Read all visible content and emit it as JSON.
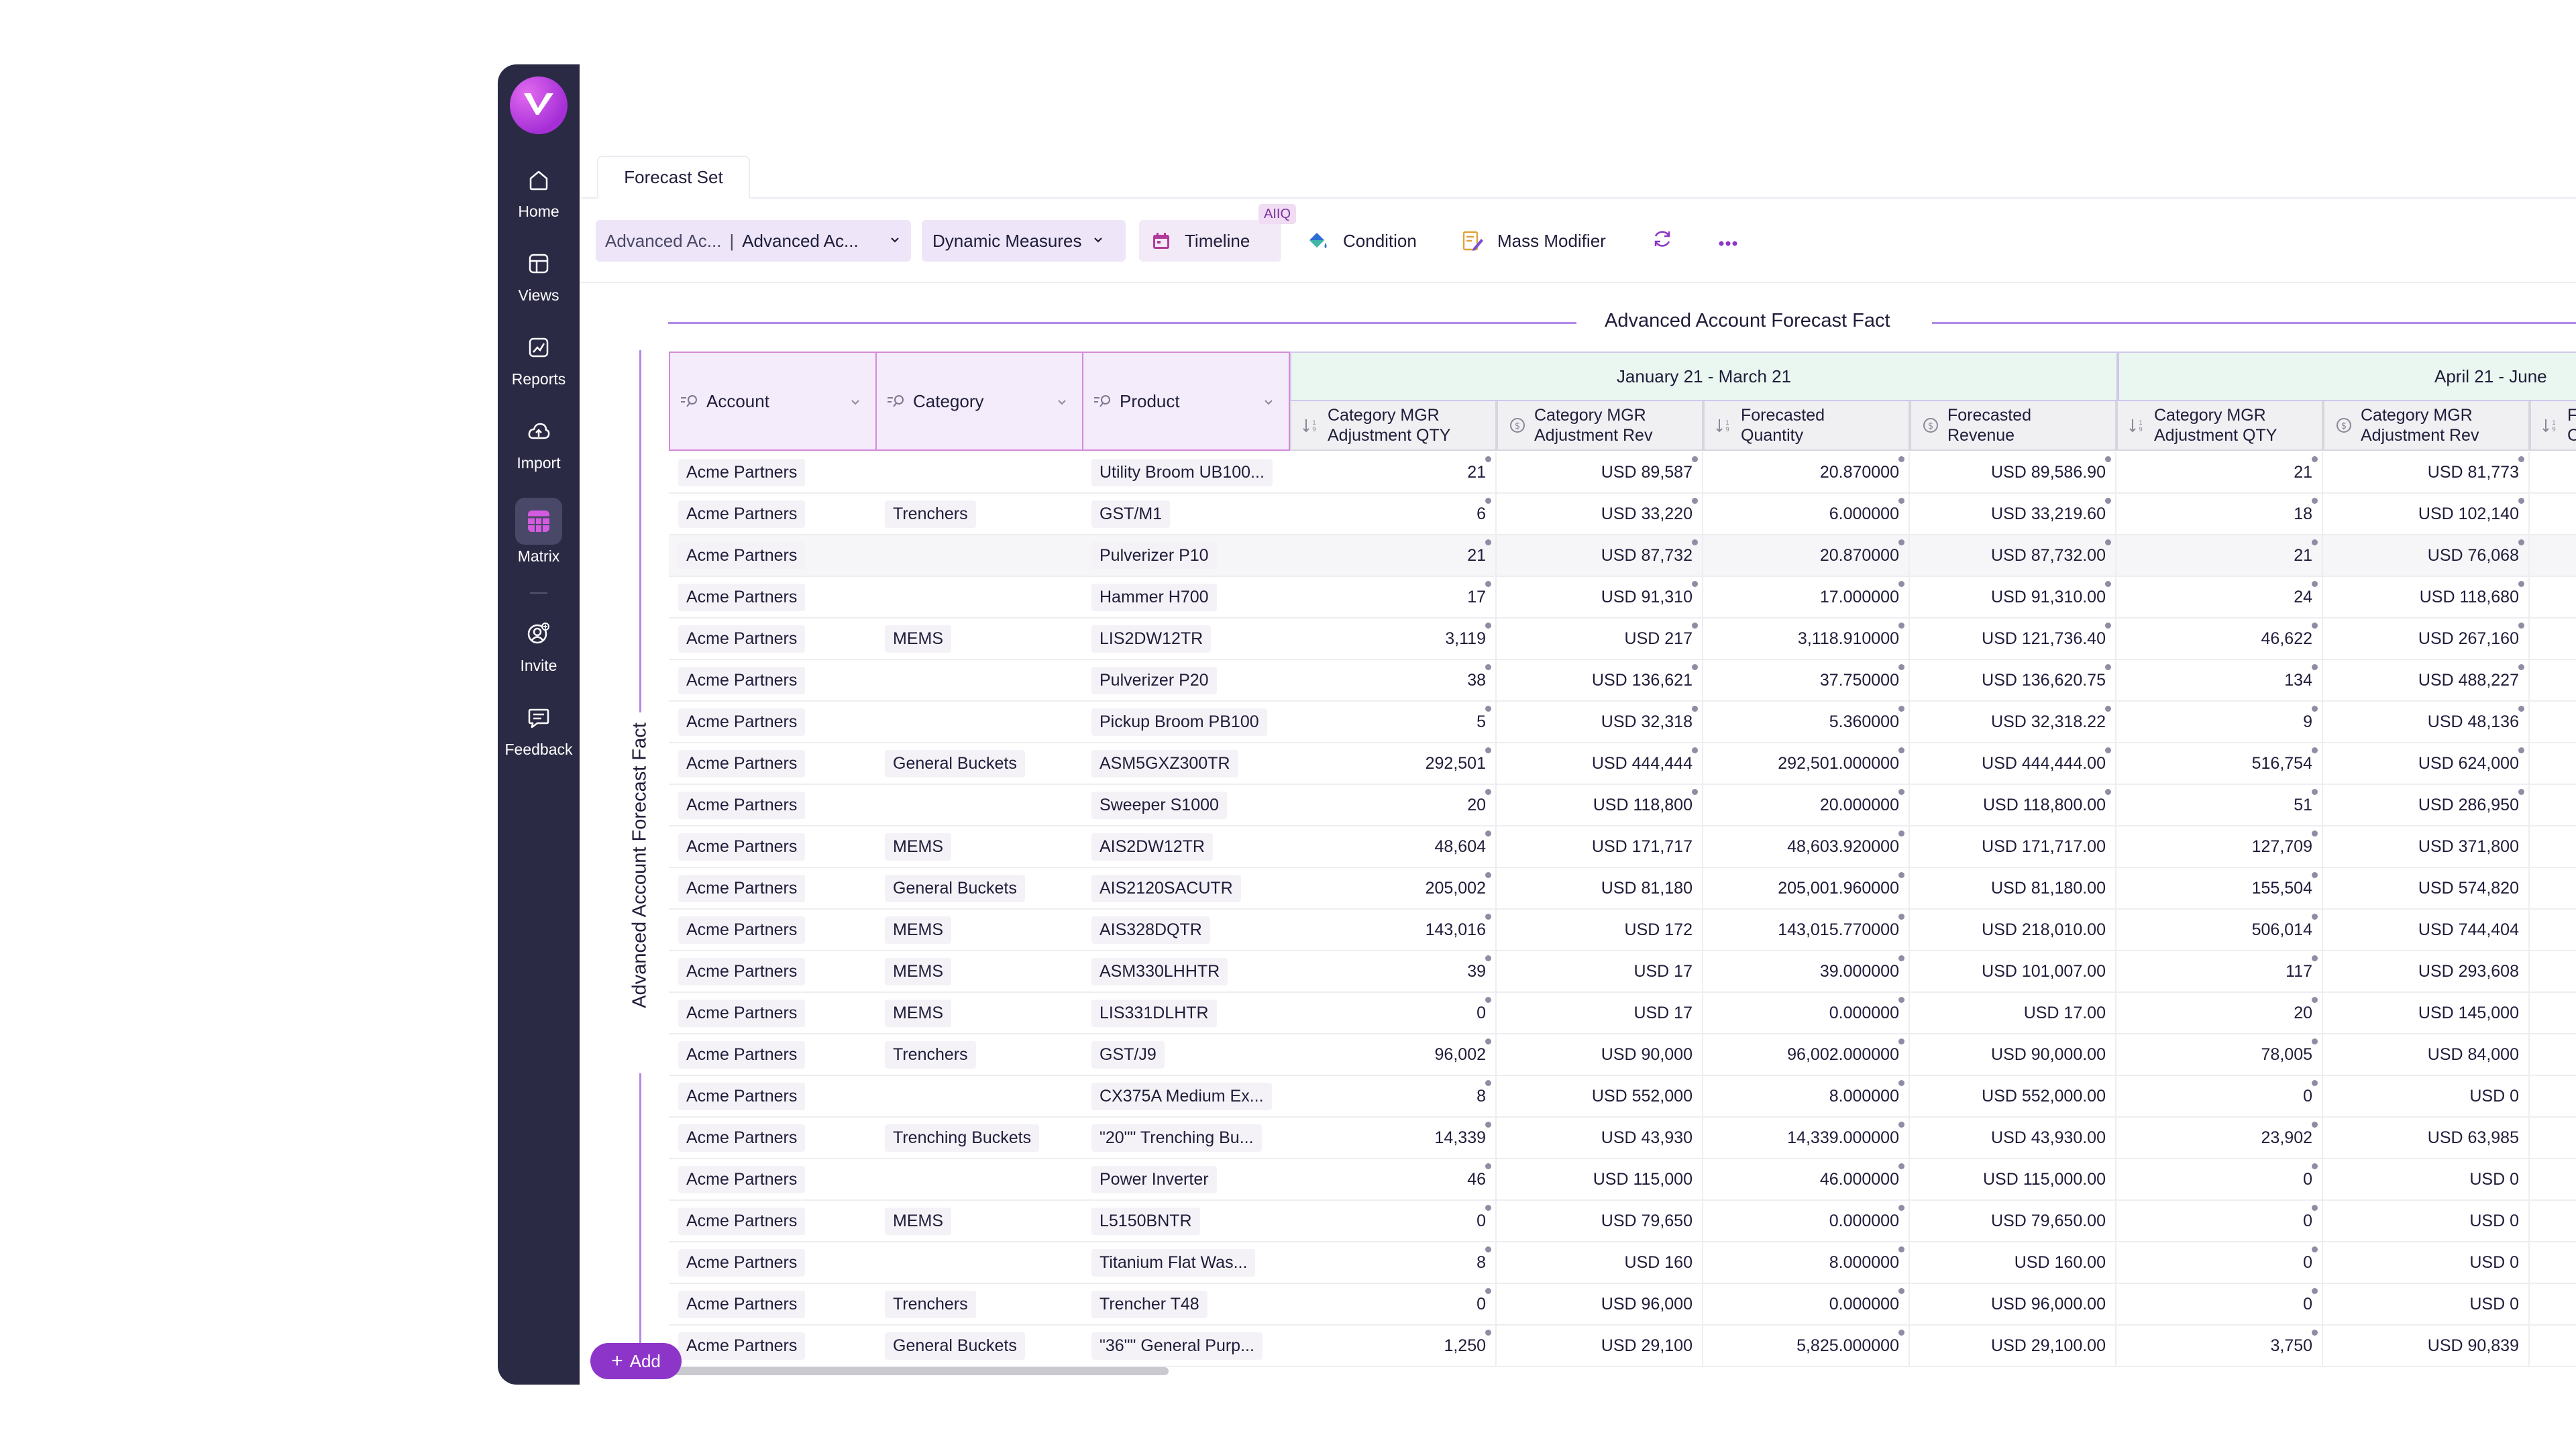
{
  "sidebar": {
    "items": [
      {
        "label": "Home",
        "icon": "home-icon"
      },
      {
        "label": "Views",
        "icon": "views-icon"
      },
      {
        "label": "Reports",
        "icon": "reports-icon"
      },
      {
        "label": "Import",
        "icon": "import-icon"
      },
      {
        "label": "Matrix",
        "icon": "matrix-icon",
        "active": true
      },
      {
        "label": "Invite",
        "icon": "invite-icon"
      },
      {
        "label": "Feedback",
        "icon": "feedback-icon"
      }
    ]
  },
  "tabs": {
    "forecast_set": "Forecast Set"
  },
  "toolbar": {
    "fact_first": "Advanced Ac...",
    "fact_second": "Advanced Ac...",
    "dynamic_measures": "Dynamic Measures",
    "timeline": "Timeline",
    "aiiq_badge": "AIIQ",
    "condition": "Condition",
    "mass_modifier": "Mass Modifier"
  },
  "fact_title": "Advanced Account Forecast Fact",
  "vertical_label": "Advanced Account Forecast Fact",
  "columns": {
    "account": "Account",
    "category": "Category",
    "product": "Product"
  },
  "periods": [
    "January 21 - March 21",
    "April 21 - June"
  ],
  "measures": [
    "Category MGR\nAdjustment QTY",
    "Category MGR\nAdjustment Rev",
    "Forecasted\nQuantity",
    "Forecasted\nRevenue",
    "Category MGR\nAdjustment QTY",
    "Category MGR\nAdjustment Rev",
    "F\nC"
  ],
  "rows": [
    {
      "account": "Acme Partners",
      "category": "",
      "product": "Utility Broom UB100...",
      "v": [
        "21",
        "USD 89,587",
        "20.870000",
        "USD 89,586.90",
        "21",
        "USD 81,773"
      ]
    },
    {
      "account": "Acme Partners",
      "category": "Trenchers",
      "product": "GST/M1",
      "v": [
        "6",
        "USD 33,220",
        "6.000000",
        "USD 33,219.60",
        "18",
        "USD 102,140"
      ]
    },
    {
      "account": "Acme Partners",
      "category": "",
      "product": "Pulverizer P10",
      "v": [
        "21",
        "USD 87,732",
        "20.870000",
        "USD 87,732.00",
        "21",
        "USD 76,068"
      ]
    },
    {
      "account": "Acme Partners",
      "category": "",
      "product": "Hammer H700",
      "v": [
        "17",
        "USD 91,310",
        "17.000000",
        "USD 91,310.00",
        "24",
        "USD 118,680"
      ]
    },
    {
      "account": "Acme Partners",
      "category": "MEMS",
      "product": "LIS2DW12TR",
      "v": [
        "3,119",
        "USD 217",
        "3,118.910000",
        "USD 121,736.40",
        "46,622",
        "USD 267,160"
      ]
    },
    {
      "account": "Acme Partners",
      "category": "",
      "product": "Pulverizer P20",
      "v": [
        "38",
        "USD 136,621",
        "37.750000",
        "USD 136,620.75",
        "134",
        "USD 488,227"
      ]
    },
    {
      "account": "Acme Partners",
      "category": "",
      "product": "Pickup Broom PB100",
      "v": [
        "5",
        "USD 32,318",
        "5.360000",
        "USD 32,318.22",
        "9",
        "USD 48,136"
      ]
    },
    {
      "account": "Acme Partners",
      "category": "General Buckets",
      "product": "ASM5GXZ300TR",
      "v": [
        "292,501",
        "USD 444,444",
        "292,501.000000",
        "USD 444,444.00",
        "516,754",
        "USD 624,000"
      ]
    },
    {
      "account": "Acme Partners",
      "category": "",
      "product": "Sweeper S1000",
      "v": [
        "20",
        "USD 118,800",
        "20.000000",
        "USD 118,800.00",
        "51",
        "USD 286,950"
      ]
    },
    {
      "account": "Acme Partners",
      "category": "MEMS",
      "product": "AIS2DW12TR",
      "v": [
        "48,604",
        "USD 171,717",
        "48,603.920000",
        "USD 171,717.00",
        "127,709",
        "USD 371,800"
      ]
    },
    {
      "account": "Acme Partners",
      "category": "General Buckets",
      "product": "AIS2120SACUTR",
      "v": [
        "205,002",
        "USD 81,180",
        "205,001.960000",
        "USD 81,180.00",
        "155,504",
        "USD 574,820"
      ]
    },
    {
      "account": "Acme Partners",
      "category": "MEMS",
      "product": "AIS328DQTR",
      "v": [
        "143,016",
        "USD 172",
        "143,015.770000",
        "USD 218,010.00",
        "506,014",
        "USD 744,404"
      ]
    },
    {
      "account": "Acme Partners",
      "category": "MEMS",
      "product": "ASM330LHHTR",
      "v": [
        "39",
        "USD 17",
        "39.000000",
        "USD 101,007.00",
        "117",
        "USD 293,608"
      ]
    },
    {
      "account": "Acme Partners",
      "category": "MEMS",
      "product": "LIS331DLHTR",
      "v": [
        "0",
        "USD 17",
        "0.000000",
        "USD 17.00",
        "20",
        "USD 145,000"
      ]
    },
    {
      "account": "Acme Partners",
      "category": "Trenchers",
      "product": "GST/J9",
      "v": [
        "96,002",
        "USD 90,000",
        "96,002.000000",
        "USD 90,000.00",
        "78,005",
        "USD 84,000"
      ]
    },
    {
      "account": "Acme Partners",
      "category": "",
      "product": "CX375A Medium Ex...",
      "v": [
        "8",
        "USD 552,000",
        "8.000000",
        "USD 552,000.00",
        "0",
        "USD 0"
      ]
    },
    {
      "account": "Acme Partners",
      "category": "Trenching Buckets",
      "product": "\"20\"\" Trenching Bu...",
      "v": [
        "14,339",
        "USD 43,930",
        "14,339.000000",
        "USD 43,930.00",
        "23,902",
        "USD 63,985"
      ]
    },
    {
      "account": "Acme Partners",
      "category": "",
      "product": "Power Inverter",
      "v": [
        "46",
        "USD 115,000",
        "46.000000",
        "USD 115,000.00",
        "0",
        "USD 0"
      ]
    },
    {
      "account": "Acme Partners",
      "category": "MEMS",
      "product": "L5150BNTR",
      "v": [
        "0",
        "USD 79,650",
        "0.000000",
        "USD 79,650.00",
        "0",
        "USD 0"
      ]
    },
    {
      "account": "Acme Partners",
      "category": "",
      "product": "Titanium Flat Was...",
      "v": [
        "8",
        "USD 160",
        "8.000000",
        "USD 160.00",
        "0",
        "USD 0"
      ]
    },
    {
      "account": "Acme Partners",
      "category": "Trenchers",
      "product": "Trencher T48",
      "v": [
        "0",
        "USD 96,000",
        "0.000000",
        "USD 96,000.00",
        "0",
        "USD 0"
      ]
    },
    {
      "account": "Acme Partners",
      "category": "General Buckets",
      "product": "\"36\"\" General Purp...",
      "v": [
        "1,250",
        "USD 29,100",
        "5,825.000000",
        "USD 29,100.00",
        "3,750",
        "USD 90,839"
      ]
    }
  ],
  "add_button": "Add",
  "colors": {
    "sidebar": "#2b2a45",
    "accent": "#8e35c9",
    "period_header": "#eaf6f0",
    "dim_header": "#f4ecfa"
  }
}
